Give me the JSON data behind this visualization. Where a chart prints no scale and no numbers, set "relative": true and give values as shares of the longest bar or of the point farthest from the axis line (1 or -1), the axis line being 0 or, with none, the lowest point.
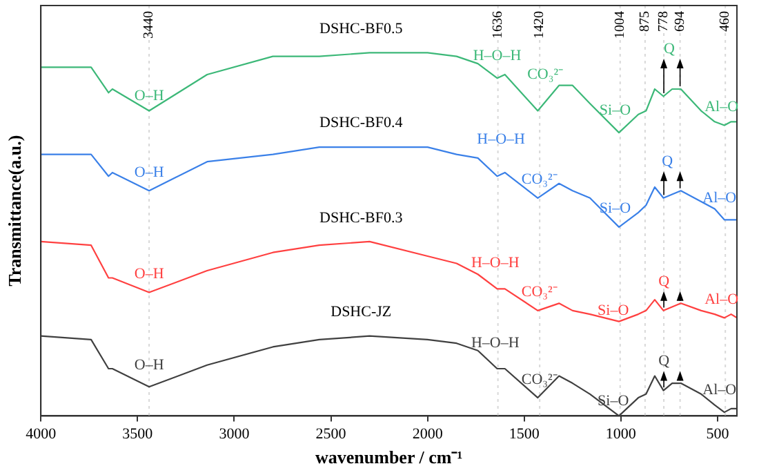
{
  "chart_data": {
    "type": "line",
    "xlabel": "wavenumber / cm⁻¹",
    "ylabel": "Transmittance(a.u.)",
    "relative": true,
    "legend": false,
    "grid": false,
    "marker": "none",
    "line_style": "solid",
    "xlim": [
      4000,
      400
    ],
    "xticks": [
      4000,
      3500,
      3000,
      2500,
      2000,
      1500,
      1000,
      500
    ],
    "x": [
      4000,
      3740,
      3650,
      3630,
      3440,
      3140,
      2800,
      2560,
      2300,
      2000,
      1850,
      1740,
      1640,
      1600,
      1430,
      1320,
      1250,
      1160,
      1010,
      910,
      870,
      825,
      780,
      735,
      690,
      585,
      515,
      465,
      430,
      400
    ],
    "series": [
      {
        "name": "DSHC-BF0.5",
        "color": "#3cb878",
        "values": [
          0.96,
          0.96,
          0.89,
          0.9,
          0.84,
          0.94,
          0.99,
          0.99,
          1,
          1,
          0.99,
          0.97,
          0.93,
          0.94,
          0.84,
          0.91,
          0.91,
          0.86,
          0.78,
          0.83,
          0.84,
          0.9,
          0.88,
          0.9,
          0.9,
          0.84,
          0.81,
          0.8,
          0.81,
          0.81
        ]
      },
      {
        "name": "DSHC-BF0.4",
        "color": "#3a80e8",
        "values": [
          0.72,
          0.72,
          0.66,
          0.67,
          0.62,
          0.7,
          0.72,
          0.74,
          0.74,
          0.74,
          0.72,
          0.71,
          0.66,
          0.67,
          0.6,
          0.64,
          0.62,
          0.6,
          0.52,
          0.56,
          0.58,
          0.63,
          0.6,
          0.61,
          0.62,
          0.59,
          0.57,
          0.54,
          0.54,
          0.54
        ]
      },
      {
        "name": "DSHC-BF0.3",
        "color": "#ff4040",
        "values": [
          0.48,
          0.47,
          0.38,
          0.38,
          0.34,
          0.4,
          0.45,
          0.47,
          0.48,
          0.44,
          0.42,
          0.39,
          0.35,
          0.35,
          0.29,
          0.31,
          0.29,
          0.28,
          0.26,
          0.28,
          0.29,
          0.32,
          0.29,
          0.3,
          0.31,
          0.29,
          0.28,
          0.27,
          0.28,
          0.27
        ]
      },
      {
        "name": "DSHC-JZ",
        "color": "#404040",
        "values": [
          0.22,
          0.21,
          0.13,
          0.13,
          0.08,
          0.14,
          0.19,
          0.21,
          0.22,
          0.21,
          0.2,
          0.18,
          0.13,
          0.13,
          0.05,
          0.11,
          0.09,
          0.06,
          0,
          0.05,
          0.06,
          0.11,
          0.07,
          0.09,
          0.09,
          0.06,
          0.03,
          0.01,
          0.02,
          0.02
        ]
      }
    ],
    "ref_lines": [
      {
        "axis": "x",
        "value": 3440,
        "label": "3440",
        "color": "#d8d8d8"
      },
      {
        "axis": "x",
        "value": 1636,
        "label": "1636",
        "color": "#d8d8d8"
      },
      {
        "axis": "x",
        "value": 1420,
        "label": "1420",
        "color": "#d8d8d8"
      },
      {
        "axis": "x",
        "value": 1004,
        "label": "1004",
        "color": "#d8d8d8"
      },
      {
        "axis": "x",
        "value": 875,
        "label": "875",
        "color": "#d8d8d8"
      },
      {
        "axis": "x",
        "value": 778,
        "label": "778",
        "color": "#d8d8d8"
      },
      {
        "axis": "x",
        "value": 694,
        "label": "694",
        "color": "#d8d8d8"
      },
      {
        "axis": "x",
        "value": 460,
        "label": "460",
        "color": "#d8d8d8"
      }
    ],
    "annotations": [
      {
        "text": "O–H",
        "x": 3440,
        "y": 0.88
      },
      {
        "text": "H–O–H",
        "x": 1640,
        "y": 0.99
      },
      {
        "text": "CO₃²⁻",
        "x": 1390,
        "y": 0.94
      },
      {
        "text": "Si–O",
        "x": 1030,
        "y": 0.84
      },
      {
        "text": "Q",
        "x": 750,
        "y": 1.01
      },
      {
        "text": "Al–O",
        "x": 480,
        "y": 0.85
      },
      {
        "text": "O–H",
        "x": 3440,
        "y": 0.67
      },
      {
        "text": "H–O–H",
        "x": 1620,
        "y": 0.76
      },
      {
        "text": "CO₃²⁻",
        "x": 1420,
        "y": 0.65
      },
      {
        "text": "Si–O",
        "x": 1030,
        "y": 0.57
      },
      {
        "text": "Q",
        "x": 760,
        "y": 0.7
      },
      {
        "text": "Al–O",
        "x": 490,
        "y": 0.6
      },
      {
        "text": "O–H",
        "x": 3440,
        "y": 0.39
      },
      {
        "text": "H–O–H",
        "x": 1650,
        "y": 0.42
      },
      {
        "text": "CO₃²⁻",
        "x": 1420,
        "y": 0.34
      },
      {
        "text": "Si–O",
        "x": 1040,
        "y": 0.29
      },
      {
        "text": "Q",
        "x": 778,
        "y": 0.37
      },
      {
        "text": "Al–O",
        "x": 480,
        "y": 0.32
      },
      {
        "text": "O–H",
        "x": 3440,
        "y": 0.14
      },
      {
        "text": "H–O–H",
        "x": 1650,
        "y": 0.2
      },
      {
        "text": "CO₃²⁻",
        "x": 1420,
        "y": 0.1
      },
      {
        "text": "Si–O",
        "x": 1040,
        "y": 0.04
      },
      {
        "text": "Q",
        "x": 778,
        "y": 0.15
      },
      {
        "text": "Al–O",
        "x": 490,
        "y": 0.07
      }
    ]
  }
}
